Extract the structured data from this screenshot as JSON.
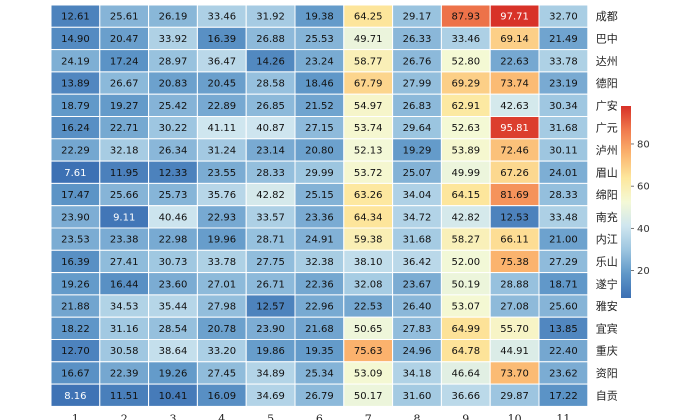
{
  "chart_data": {
    "type": "heatmap",
    "title": "",
    "xlabel": "",
    "ylabel": "",
    "columns": [
      "1",
      "2",
      "3",
      "4",
      "5",
      "6",
      "7",
      "8",
      "9",
      "10",
      "11"
    ],
    "rows": [
      "成都",
      "巴中",
      "达州",
      "德阳",
      "广安",
      "广元",
      "泸州",
      "眉山",
      "绵阳",
      "南充",
      "内江",
      "乐山",
      "遂宁",
      "雅安",
      "宜宾",
      "重庆",
      "资阳",
      "自贡"
    ],
    "values": [
      [
        "12.61",
        "25.61",
        "26.19",
        "33.46",
        "31.92",
        "19.38",
        "64.25",
        "29.17",
        "87.93",
        "97.71",
        "32.70"
      ],
      [
        "14.90",
        "20.47",
        "33.92",
        "16.39",
        "26.88",
        "25.53",
        "49.71",
        "26.33",
        "33.46",
        "69.14",
        "21.49"
      ],
      [
        "24.19",
        "17.24",
        "28.97",
        "36.47",
        "14.26",
        "23.24",
        "58.77",
        "26.76",
        "52.80",
        "22.63",
        "33.78"
      ],
      [
        "13.89",
        "26.67",
        "20.83",
        "20.45",
        "28.58",
        "18.46",
        "67.79",
        "27.99",
        "69.29",
        "73.74",
        "23.19"
      ],
      [
        "18.79",
        "19.27",
        "25.42",
        "22.89",
        "26.85",
        "21.52",
        "54.97",
        "26.83",
        "62.91",
        "42.63",
        "30.34"
      ],
      [
        "16.24",
        "22.71",
        "30.22",
        "41.11",
        "40.87",
        "27.15",
        "53.74",
        "29.64",
        "52.63",
        "95.81",
        "31.68"
      ],
      [
        "22.29",
        "32.18",
        "26.34",
        "31.24",
        "23.14",
        "20.80",
        "52.13",
        "19.29",
        "53.89",
        "72.46",
        "30.11"
      ],
      [
        "7.61",
        "11.95",
        "12.33",
        "23.55",
        "28.33",
        "29.99",
        "53.72",
        "25.07",
        "49.99",
        "67.26",
        "24.01"
      ],
      [
        "17.47",
        "25.66",
        "25.73",
        "35.76",
        "42.82",
        "25.15",
        "63.26",
        "34.04",
        "64.15",
        "81.69",
        "28.33"
      ],
      [
        "23.90",
        "9.11",
        "40.46",
        "22.93",
        "33.57",
        "23.36",
        "64.34",
        "34.72",
        "42.82",
        "12.53",
        "33.48"
      ],
      [
        "23.53",
        "23.38",
        "22.98",
        "19.96",
        "28.71",
        "24.91",
        "59.38",
        "31.68",
        "58.27",
        "66.11",
        "21.00"
      ],
      [
        "16.39",
        "27.41",
        "30.73",
        "33.78",
        "27.75",
        "32.38",
        "38.10",
        "36.42",
        "52.00",
        "75.38",
        "27.29"
      ],
      [
        "19.26",
        "16.44",
        "23.60",
        "27.01",
        "26.71",
        "22.36",
        "32.08",
        "23.67",
        "50.19",
        "28.88",
        "18.71"
      ],
      [
        "21.88",
        "34.53",
        "35.44",
        "27.98",
        "12.57",
        "22.96",
        "22.53",
        "26.40",
        "53.07",
        "27.08",
        "25.60"
      ],
      [
        "18.22",
        "31.16",
        "28.54",
        "20.78",
        "23.90",
        "21.68",
        "50.65",
        "27.83",
        "64.99",
        "55.70",
        "13.85"
      ],
      [
        "12.70",
        "30.58",
        "38.64",
        "33.20",
        "19.86",
        "19.35",
        "75.63",
        "24.96",
        "64.78",
        "44.91",
        "22.40"
      ],
      [
        "16.67",
        "22.39",
        "19.26",
        "27.45",
        "34.89",
        "25.34",
        "53.09",
        "34.18",
        "46.64",
        "73.70",
        "23.62"
      ],
      [
        "8.16",
        "11.51",
        "10.41",
        "16.09",
        "34.69",
        "26.79",
        "50.17",
        "31.60",
        "36.66",
        "29.87",
        "17.22"
      ]
    ],
    "value_range": [
      7,
      98
    ],
    "colorscale": [
      "#3b6fb3",
      "#5f97c8",
      "#9cc5e0",
      "#cfe6ef",
      "#f4f9d6",
      "#fde79d",
      "#fbb46e",
      "#f07a4d",
      "#d73027"
    ],
    "colorbar": {
      "ticks": [
        "20",
        "40",
        "60",
        "80"
      ],
      "tick_values": [
        20,
        40,
        60,
        80
      ],
      "placement": "right"
    },
    "grid": true
  }
}
